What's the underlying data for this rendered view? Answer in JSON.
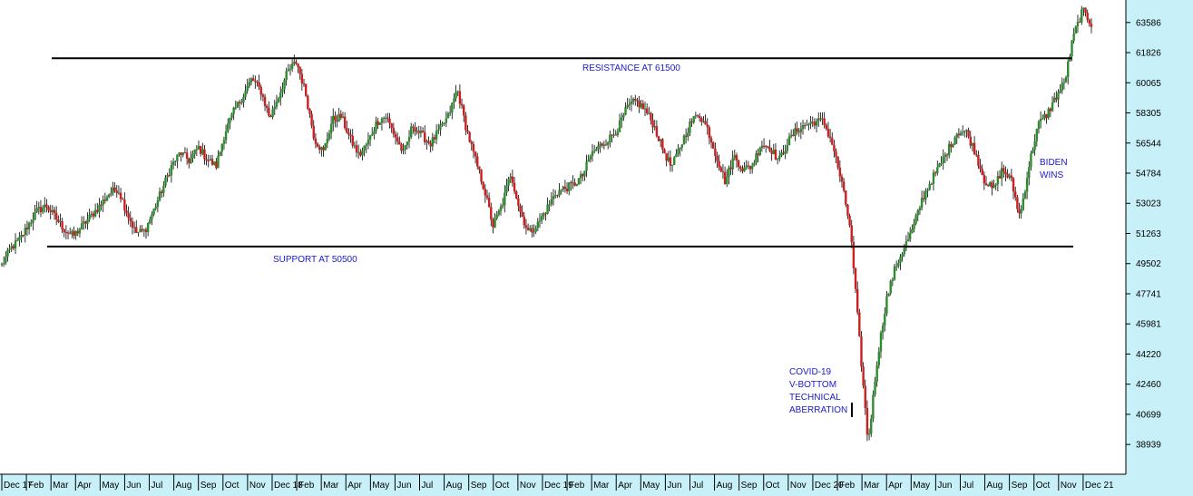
{
  "header_text": "",
  "colors": {
    "up": "#2e8b2e",
    "down": "#cc1f1f",
    "wick": "#000000",
    "annotation": "#1a1acc",
    "axis_band": "#c8f0f8"
  },
  "chart_data": {
    "type": "line",
    "title": "",
    "xlabel": "",
    "ylabel": "",
    "ylim": [
      37200,
      64900
    ],
    "y_ticks": [
      "63586",
      "61826",
      "60065",
      "58305",
      "56544",
      "54784",
      "53023",
      "51263",
      "49502",
      "47741",
      "45981",
      "44220",
      "42460",
      "40699",
      "38939"
    ],
    "x_ticks": [
      "Dec 17",
      "Feb",
      "Mar",
      "Apr",
      "May",
      "Jun",
      "Jul",
      "Aug",
      "Sep",
      "Oct",
      "Nov",
      "Dec 18",
      "Feb",
      "Mar",
      "Apr",
      "May",
      "Jun",
      "Jul",
      "Aug",
      "Sep",
      "Oct",
      "Nov",
      "Dec 19",
      "Feb",
      "Mar",
      "Apr",
      "May",
      "Jun",
      "Jul",
      "Aug",
      "Sep",
      "Oct",
      "Nov",
      "Dec 20",
      "Feb",
      "Mar",
      "Apr",
      "May",
      "Jun",
      "Jul",
      "Aug",
      "Sep",
      "Oct",
      "Nov",
      "Dec 21"
    ],
    "series": [
      {
        "values": [
          49400,
          50400,
          50900,
          51800,
          52600,
          52900,
          52200,
          51500,
          51100,
          51700,
          52300,
          52900,
          53600,
          53900,
          52500,
          51300,
          51400,
          52600,
          53900,
          55200,
          56000,
          55500,
          56300,
          55600,
          55200,
          57200,
          58400,
          59300,
          60300,
          59600,
          58000,
          59300,
          60700,
          61300,
          59500,
          56800,
          56000,
          57900,
          58100,
          56800,
          55800,
          56600,
          57800,
          58100,
          57000,
          55900,
          57600,
          57000,
          56500,
          57300,
          58100,
          59700,
          57400,
          55600,
          53900,
          51700,
          52900,
          54800,
          52600,
          51300,
          51800,
          52700,
          53600,
          53900,
          54100,
          54600,
          55900,
          56400,
          56800,
          57400,
          58600,
          59000,
          58500,
          57600,
          56200,
          55100,
          56400,
          57600,
          58300,
          57400,
          55800,
          54300,
          55800,
          55000,
          55200,
          56500,
          56300,
          55500,
          56600,
          57300,
          57600,
          57800,
          57800,
          56500,
          54300,
          51600,
          45200,
          39000,
          43800,
          47300,
          49200,
          50400,
          51500,
          53200,
          54300,
          55200,
          56200,
          57200,
          57200,
          56000,
          54400,
          53800,
          55000,
          54400,
          52200,
          55200,
          57600,
          58200,
          59200,
          60100,
          62800,
          64300,
          63500
        ]
      }
    ],
    "reference_lines": [
      {
        "label": "RESISTANCE AT 61500",
        "value": 61500
      },
      {
        "label": "SUPPORT AT 50500",
        "value": 50500
      }
    ],
    "annotations": [
      {
        "lines": [
          "BIDEN",
          "WINS"
        ]
      },
      {
        "lines": [
          "COVID-19",
          "V-BOTTOM",
          "TECHNICAL",
          "ABERRATION"
        ]
      }
    ],
    "grid": false,
    "legend": "none"
  }
}
